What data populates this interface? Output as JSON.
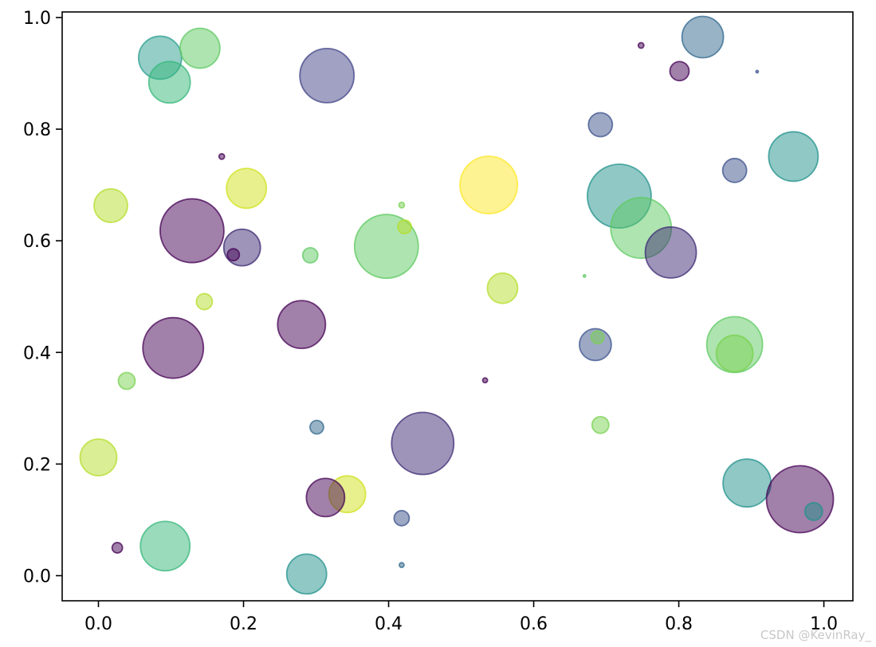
{
  "chart_data": {
    "type": "scatter",
    "title": "",
    "xlabel": "",
    "ylabel": "",
    "xlim": [
      -0.05,
      1.04
    ],
    "ylim": [
      -0.045,
      1.01
    ],
    "x_ticks": [
      "0.0",
      "0.2",
      "0.4",
      "0.6",
      "0.8",
      "1.0"
    ],
    "y_ticks": [
      "0.0",
      "0.2",
      "0.4",
      "0.6",
      "0.8",
      "1.0"
    ],
    "grid": false,
    "alpha": 0.5,
    "colormap": "viridis",
    "points": [
      {
        "x": 0.085,
        "y": 0.928,
        "size": 27,
        "color": "#2a9d8f"
      },
      {
        "x": 0.14,
        "y": 0.945,
        "size": 25,
        "color": "#5ec962"
      },
      {
        "x": 0.098,
        "y": 0.884,
        "size": 26,
        "color": "#35b779"
      },
      {
        "x": 0.315,
        "y": 0.896,
        "size": 34,
        "color": "#414487"
      },
      {
        "x": 0.833,
        "y": 0.965,
        "size": 26,
        "color": "#31688e"
      },
      {
        "x": 0.748,
        "y": 0.95,
        "size": 3.5,
        "color": "#440154"
      },
      {
        "x": 0.801,
        "y": 0.904,
        "size": 12,
        "color": "#440154"
      },
      {
        "x": 0.908,
        "y": 0.903,
        "size": 1.5,
        "color": "#3b528b"
      },
      {
        "x": 0.692,
        "y": 0.808,
        "size": 15,
        "color": "#3b528b"
      },
      {
        "x": 0.877,
        "y": 0.726,
        "size": 15,
        "color": "#3b528b"
      },
      {
        "x": 0.958,
        "y": 0.751,
        "size": 31,
        "color": "#21918c"
      },
      {
        "x": 0.17,
        "y": 0.751,
        "size": 3.5,
        "color": "#440154"
      },
      {
        "x": 0.204,
        "y": 0.694,
        "size": 25,
        "color": "#d0e11c"
      },
      {
        "x": 0.017,
        "y": 0.663,
        "size": 21,
        "color": "#b5de2b"
      },
      {
        "x": 0.129,
        "y": 0.618,
        "size": 40,
        "color": "#440154"
      },
      {
        "x": 0.198,
        "y": 0.588,
        "size": 23,
        "color": "#3e2a73"
      },
      {
        "x": 0.186,
        "y": 0.575,
        "size": 7.5,
        "color": "#440154"
      },
      {
        "x": 0.292,
        "y": 0.574,
        "size": 9.5,
        "color": "#5ec962"
      },
      {
        "x": 0.397,
        "y": 0.59,
        "size": 40,
        "color": "#5ec962"
      },
      {
        "x": 0.418,
        "y": 0.664,
        "size": 3.5,
        "color": "#7ad151"
      },
      {
        "x": 0.422,
        "y": 0.625,
        "size": 8.5,
        "color": "#b5de2b"
      },
      {
        "x": 0.538,
        "y": 0.7,
        "size": 36,
        "color": "#fde725"
      },
      {
        "x": 0.718,
        "y": 0.68,
        "size": 40,
        "color": "#21918c"
      },
      {
        "x": 0.748,
        "y": 0.623,
        "size": 38,
        "color": "#5ec962"
      },
      {
        "x": 0.789,
        "y": 0.579,
        "size": 32,
        "color": "#3e2a73"
      },
      {
        "x": 0.67,
        "y": 0.537,
        "size": 1.5,
        "color": "#5ec962"
      },
      {
        "x": 0.557,
        "y": 0.515,
        "size": 19,
        "color": "#b5de2b"
      },
      {
        "x": 0.146,
        "y": 0.491,
        "size": 10,
        "color": "#b5de2b"
      },
      {
        "x": 0.28,
        "y": 0.45,
        "size": 30,
        "color": "#440154"
      },
      {
        "x": 0.103,
        "y": 0.408,
        "size": 38,
        "color": "#440154"
      },
      {
        "x": 0.685,
        "y": 0.414,
        "size": 20,
        "color": "#3b528b"
      },
      {
        "x": 0.688,
        "y": 0.427,
        "size": 8,
        "color": "#7ad151"
      },
      {
        "x": 0.877,
        "y": 0.414,
        "size": 35,
        "color": "#5ec962"
      },
      {
        "x": 0.877,
        "y": 0.398,
        "size": 23,
        "color": "#7ad151"
      },
      {
        "x": 0.039,
        "y": 0.349,
        "size": 10.5,
        "color": "#7ad151"
      },
      {
        "x": 0.533,
        "y": 0.35,
        "size": 3,
        "color": "#440154"
      },
      {
        "x": 0.692,
        "y": 0.27,
        "size": 10.5,
        "color": "#7ad151"
      },
      {
        "x": 0.301,
        "y": 0.266,
        "size": 8.5,
        "color": "#31688e"
      },
      {
        "x": 0.447,
        "y": 0.237,
        "size": 39,
        "color": "#3e2a73"
      },
      {
        "x": 0.0,
        "y": 0.212,
        "size": 23,
        "color": "#b5de2b"
      },
      {
        "x": 0.343,
        "y": 0.146,
        "size": 23,
        "color": "#d0e11c"
      },
      {
        "x": 0.313,
        "y": 0.14,
        "size": 24,
        "color": "#440154"
      },
      {
        "x": 0.894,
        "y": 0.166,
        "size": 30,
        "color": "#21918c"
      },
      {
        "x": 0.967,
        "y": 0.137,
        "size": 42,
        "color": "#440154"
      },
      {
        "x": 0.986,
        "y": 0.115,
        "size": 11,
        "color": "#21918c"
      },
      {
        "x": 0.418,
        "y": 0.103,
        "size": 9.5,
        "color": "#3b528b"
      },
      {
        "x": 0.026,
        "y": 0.05,
        "size": 6.5,
        "color": "#440154"
      },
      {
        "x": 0.092,
        "y": 0.053,
        "size": 31,
        "color": "#35b779"
      },
      {
        "x": 0.418,
        "y": 0.019,
        "size": 3,
        "color": "#31688e"
      },
      {
        "x": 0.287,
        "y": 0.003,
        "size": 25,
        "color": "#21918c"
      }
    ]
  },
  "watermark": "CSDN @KevinRay_"
}
